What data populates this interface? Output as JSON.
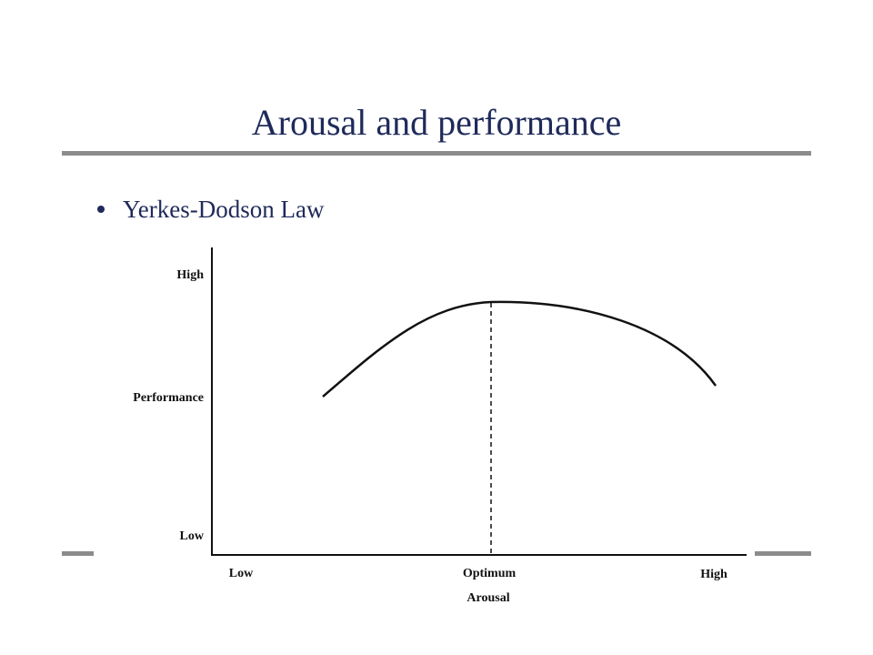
{
  "slide": {
    "title": "Arousal and performance",
    "bullets": [
      "Yerkes-Dodson Law"
    ]
  },
  "diagram": {
    "y_high": "High",
    "y_axis_label": "Performance",
    "y_low": "Low",
    "x_low": "Low",
    "x_optimum": "Optimum",
    "x_high": "High",
    "x_axis_label": "Arousal"
  }
}
